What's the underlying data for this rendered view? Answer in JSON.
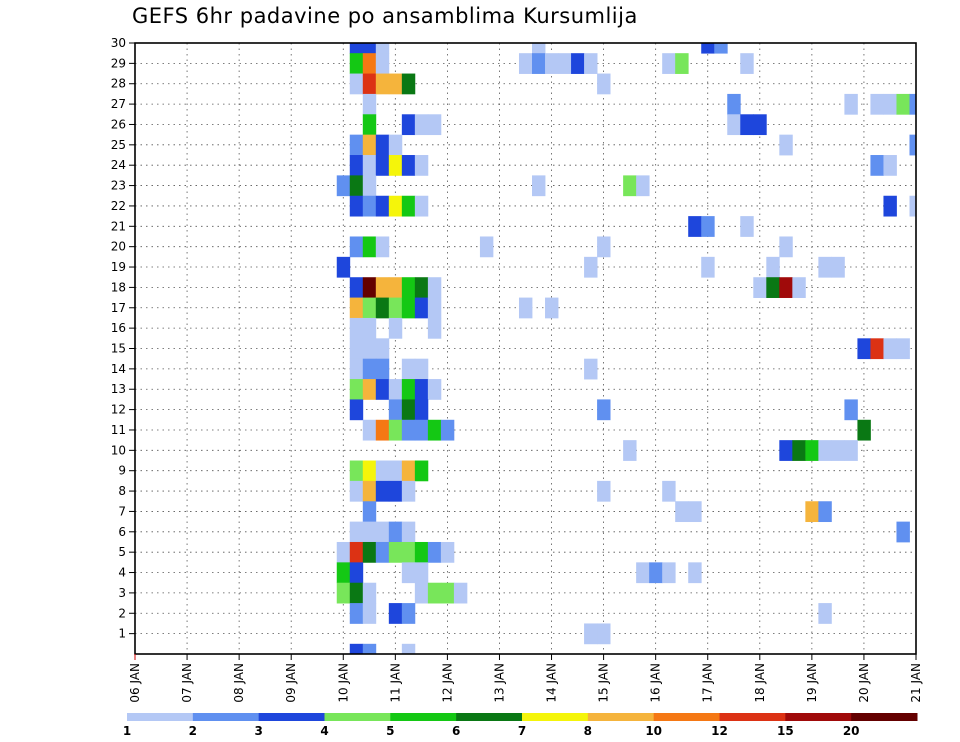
{
  "chart_data": {
    "type": "heatmap",
    "title": "GEFS 6hr padavine po ansamblima Kursumlija",
    "xlabel": "",
    "ylabel": "",
    "x_tick_labels": [
      "06 JAN",
      "07 JAN",
      "08 JAN",
      "09 JAN",
      "10 JAN",
      "11 JAN",
      "12 JAN",
      "13 JAN",
      "14 JAN",
      "15 JAN",
      "16 JAN",
      "17 JAN",
      "18 JAN",
      "19 JAN",
      "20 JAN",
      "21 JAN"
    ],
    "y_tick_labels": [
      "1",
      "2",
      "3",
      "4",
      "5",
      "6",
      "7",
      "8",
      "9",
      "10",
      "11",
      "12",
      "13",
      "14",
      "15",
      "16",
      "17",
      "18",
      "19",
      "20",
      "21",
      "22",
      "23",
      "24",
      "25",
      "26",
      "27",
      "28",
      "29",
      "30"
    ],
    "y_range": [
      0,
      30
    ],
    "x_range_days": [
      0,
      15
    ],
    "grid": true,
    "legend_position": "bottom",
    "legend": {
      "levels": [
        "1",
        "2",
        "3",
        "4",
        "5",
        "6",
        "7",
        "8",
        "10",
        "12",
        "15",
        "20"
      ],
      "colors": [
        "#b4c8f5",
        "#6090f0",
        "#1e46dc",
        "#78e65a",
        "#14c814",
        "#0a7814",
        "#f5f50a",
        "#f5b43c",
        "#f57814",
        "#dc3214",
        "#a00a0a",
        "#640000"
      ]
    },
    "cells": [
      {
        "member": 30,
        "time": "10 JAN 06",
        "class": 3
      },
      {
        "member": 30,
        "time": "10 JAN 12",
        "class": 3
      },
      {
        "member": 30,
        "time": "10 JAN 18",
        "class": 1
      },
      {
        "member": 30,
        "time": "13 JAN 18",
        "class": 1
      },
      {
        "member": 30,
        "time": "17 JAN 00",
        "class": 3
      },
      {
        "member": 30,
        "time": "17 JAN 06",
        "class": 2
      },
      {
        "member": 29,
        "time": "10 JAN 06",
        "class": 5
      },
      {
        "member": 29,
        "time": "10 JAN 12",
        "class": 9
      },
      {
        "member": 29,
        "time": "10 JAN 18",
        "class": 1
      },
      {
        "member": 29,
        "time": "13 JAN 12",
        "class": 1
      },
      {
        "member": 29,
        "time": "13 JAN 18",
        "class": 2
      },
      {
        "member": 29,
        "time": "14 JAN 00",
        "class": 1
      },
      {
        "member": 29,
        "time": "14 JAN 06",
        "class": 1
      },
      {
        "member": 29,
        "time": "14 JAN 12",
        "class": 3
      },
      {
        "member": 29,
        "time": "14 JAN 18",
        "class": 1
      },
      {
        "member": 29,
        "time": "16 JAN 06",
        "class": 1
      },
      {
        "member": 29,
        "time": "16 JAN 12",
        "class": 4
      },
      {
        "member": 29,
        "time": "17 JAN 18",
        "class": 1
      },
      {
        "member": 28,
        "time": "10 JAN 06",
        "class": 1
      },
      {
        "member": 28,
        "time": "10 JAN 12",
        "class": 10
      },
      {
        "member": 28,
        "time": "10 JAN 18",
        "class": 8
      },
      {
        "member": 28,
        "time": "11 JAN 00",
        "class": 8
      },
      {
        "member": 28,
        "time": "11 JAN 06",
        "class": 6
      },
      {
        "member": 28,
        "time": "15 JAN 00",
        "class": 1
      },
      {
        "member": 27,
        "time": "10 JAN 12",
        "class": 1
      },
      {
        "member": 27,
        "time": "17 JAN 12",
        "class": 2
      },
      {
        "member": 27,
        "time": "19 JAN 18",
        "class": 1
      },
      {
        "member": 27,
        "time": "20 JAN 06",
        "class": 1
      },
      {
        "member": 27,
        "time": "20 JAN 12",
        "class": 1
      },
      {
        "member": 27,
        "time": "20 JAN 18",
        "class": 4
      },
      {
        "member": 27,
        "time": "21 JAN 00",
        "class": 2
      },
      {
        "member": 26,
        "time": "10 JAN 12",
        "class": 5
      },
      {
        "member": 26,
        "time": "11 JAN 06",
        "class": 3
      },
      {
        "member": 26,
        "time": "11 JAN 12",
        "class": 1
      },
      {
        "member": 26,
        "time": "11 JAN 18",
        "class": 1
      },
      {
        "member": 26,
        "time": "17 JAN 12",
        "class": 1
      },
      {
        "member": 26,
        "time": "17 JAN 18",
        "class": 3
      },
      {
        "member": 26,
        "time": "18 JAN 00",
        "class": 3
      },
      {
        "member": 25,
        "time": "10 JAN 06",
        "class": 2
      },
      {
        "member": 25,
        "time": "10 JAN 12",
        "class": 8
      },
      {
        "member": 25,
        "time": "10 JAN 18",
        "class": 3
      },
      {
        "member": 25,
        "time": "11 JAN 00",
        "class": 1
      },
      {
        "member": 25,
        "time": "18 JAN 12",
        "class": 1
      },
      {
        "member": 25,
        "time": "21 JAN 00",
        "class": 2
      },
      {
        "member": 24,
        "time": "10 JAN 06",
        "class": 3
      },
      {
        "member": 24,
        "time": "10 JAN 12",
        "class": 1
      },
      {
        "member": 24,
        "time": "10 JAN 18",
        "class": 3
      },
      {
        "member": 24,
        "time": "11 JAN 00",
        "class": 7
      },
      {
        "member": 24,
        "time": "11 JAN 06",
        "class": 3
      },
      {
        "member": 24,
        "time": "11 JAN 12",
        "class": 1
      },
      {
        "member": 24,
        "time": "20 JAN 06",
        "class": 2
      },
      {
        "member": 24,
        "time": "20 JAN 12",
        "class": 1
      },
      {
        "member": 23,
        "time": "10 JAN 00",
        "class": 2
      },
      {
        "member": 23,
        "time": "10 JAN 06",
        "class": 6
      },
      {
        "member": 23,
        "time": "10 JAN 12",
        "class": 1
      },
      {
        "member": 23,
        "time": "13 JAN 18",
        "class": 1
      },
      {
        "member": 23,
        "time": "15 JAN 12",
        "class": 4
      },
      {
        "member": 23,
        "time": "15 JAN 18",
        "class": 1
      },
      {
        "member": 22,
        "time": "10 JAN 06",
        "class": 3
      },
      {
        "member": 22,
        "time": "10 JAN 12",
        "class": 2
      },
      {
        "member": 22,
        "time": "10 JAN 18",
        "class": 3
      },
      {
        "member": 22,
        "time": "11 JAN 00",
        "class": 7
      },
      {
        "member": 22,
        "time": "11 JAN 06",
        "class": 5
      },
      {
        "member": 22,
        "time": "11 JAN 12",
        "class": 1
      },
      {
        "member": 22,
        "time": "20 JAN 12",
        "class": 3
      },
      {
        "member": 22,
        "time": "21 JAN 00",
        "class": 1
      },
      {
        "member": 21,
        "time": "16 JAN 18",
        "class": 3
      },
      {
        "member": 21,
        "time": "17 JAN 00",
        "class": 2
      },
      {
        "member": 21,
        "time": "17 JAN 18",
        "class": 1
      },
      {
        "member": 20,
        "time": "10 JAN 06",
        "class": 2
      },
      {
        "member": 20,
        "time": "10 JAN 12",
        "class": 5
      },
      {
        "member": 20,
        "time": "10 JAN 18",
        "class": 1
      },
      {
        "member": 20,
        "time": "12 JAN 18",
        "class": 1
      },
      {
        "member": 20,
        "time": "15 JAN 00",
        "class": 1
      },
      {
        "member": 20,
        "time": "18 JAN 12",
        "class": 1
      },
      {
        "member": 19,
        "time": "10 JAN 00",
        "class": 3
      },
      {
        "member": 19,
        "time": "14 JAN 18",
        "class": 1
      },
      {
        "member": 19,
        "time": "17 JAN 00",
        "class": 1
      },
      {
        "member": 19,
        "time": "18 JAN 06",
        "class": 1
      },
      {
        "member": 19,
        "time": "19 JAN 06",
        "class": 1
      },
      {
        "member": 19,
        "time": "19 JAN 12",
        "class": 1
      },
      {
        "member": 18,
        "time": "10 JAN 06",
        "class": 3
      },
      {
        "member": 18,
        "time": "10 JAN 12",
        "class": 12
      },
      {
        "member": 18,
        "time": "10 JAN 18",
        "class": 8
      },
      {
        "member": 18,
        "time": "11 JAN 00",
        "class": 8
      },
      {
        "member": 18,
        "time": "11 JAN 06",
        "class": 5
      },
      {
        "member": 18,
        "time": "11 JAN 12",
        "class": 6
      },
      {
        "member": 18,
        "time": "11 JAN 18",
        "class": 1
      },
      {
        "member": 18,
        "time": "18 JAN 00",
        "class": 1
      },
      {
        "member": 18,
        "time": "18 JAN 06",
        "class": 6
      },
      {
        "member": 18,
        "time": "18 JAN 12",
        "class": 11
      },
      {
        "member": 18,
        "time": "18 JAN 18",
        "class": 1
      },
      {
        "member": 17,
        "time": "10 JAN 06",
        "class": 8
      },
      {
        "member": 17,
        "time": "10 JAN 12",
        "class": 4
      },
      {
        "member": 17,
        "time": "10 JAN 18",
        "class": 6
      },
      {
        "member": 17,
        "time": "11 JAN 00",
        "class": 4
      },
      {
        "member": 17,
        "time": "11 JAN 06",
        "class": 5
      },
      {
        "member": 17,
        "time": "11 JAN 12",
        "class": 3
      },
      {
        "member": 17,
        "time": "11 JAN 18",
        "class": 1
      },
      {
        "member": 17,
        "time": "13 JAN 12",
        "class": 1
      },
      {
        "member": 17,
        "time": "14 JAN 00",
        "class": 1
      },
      {
        "member": 16,
        "time": "10 JAN 06",
        "class": 1
      },
      {
        "member": 16,
        "time": "10 JAN 12",
        "class": 1
      },
      {
        "member": 16,
        "time": "11 JAN 00",
        "class": 1
      },
      {
        "member": 16,
        "time": "11 JAN 18",
        "class": 1
      },
      {
        "member": 15,
        "time": "10 JAN 06",
        "class": 1
      },
      {
        "member": 15,
        "time": "10 JAN 12",
        "class": 1
      },
      {
        "member": 15,
        "time": "10 JAN 18",
        "class": 1
      },
      {
        "member": 15,
        "time": "20 JAN 00",
        "class": 3
      },
      {
        "member": 15,
        "time": "20 JAN 06",
        "class": 10
      },
      {
        "member": 15,
        "time": "20 JAN 12",
        "class": 1
      },
      {
        "member": 15,
        "time": "20 JAN 18",
        "class": 1
      },
      {
        "member": 14,
        "time": "10 JAN 06",
        "class": 1
      },
      {
        "member": 14,
        "time": "10 JAN 12",
        "class": 2
      },
      {
        "member": 14,
        "time": "10 JAN 18",
        "class": 2
      },
      {
        "member": 14,
        "time": "11 JAN 06",
        "class": 1
      },
      {
        "member": 14,
        "time": "11 JAN 12",
        "class": 1
      },
      {
        "member": 14,
        "time": "14 JAN 18",
        "class": 1
      },
      {
        "member": 13,
        "time": "10 JAN 06",
        "class": 4
      },
      {
        "member": 13,
        "time": "10 JAN 12",
        "class": 8
      },
      {
        "member": 13,
        "time": "10 JAN 18",
        "class": 3
      },
      {
        "member": 13,
        "time": "11 JAN 00",
        "class": 1
      },
      {
        "member": 13,
        "time": "11 JAN 06",
        "class": 5
      },
      {
        "member": 13,
        "time": "11 JAN 12",
        "class": 3
      },
      {
        "member": 13,
        "time": "11 JAN 18",
        "class": 1
      },
      {
        "member": 12,
        "time": "10 JAN 06",
        "class": 3
      },
      {
        "member": 12,
        "time": "11 JAN 00",
        "class": 2
      },
      {
        "member": 12,
        "time": "11 JAN 06",
        "class": 6
      },
      {
        "member": 12,
        "time": "11 JAN 12",
        "class": 3
      },
      {
        "member": 12,
        "time": "15 JAN 00",
        "class": 2
      },
      {
        "member": 12,
        "time": "19 JAN 18",
        "class": 2
      },
      {
        "member": 11,
        "time": "10 JAN 12",
        "class": 1
      },
      {
        "member": 11,
        "time": "10 JAN 18",
        "class": 9
      },
      {
        "member": 11,
        "time": "11 JAN 00",
        "class": 4
      },
      {
        "member": 11,
        "time": "11 JAN 06",
        "class": 2
      },
      {
        "member": 11,
        "time": "11 JAN 12",
        "class": 2
      },
      {
        "member": 11,
        "time": "11 JAN 18",
        "class": 5
      },
      {
        "member": 11,
        "time": "12 JAN 00",
        "class": 2
      },
      {
        "member": 11,
        "time": "20 JAN 00",
        "class": 6
      },
      {
        "member": 10,
        "time": "15 JAN 12",
        "class": 1
      },
      {
        "member": 10,
        "time": "18 JAN 12",
        "class": 3
      },
      {
        "member": 10,
        "time": "18 JAN 18",
        "class": 6
      },
      {
        "member": 10,
        "time": "19 JAN 00",
        "class": 5
      },
      {
        "member": 10,
        "time": "19 JAN 06",
        "class": 1
      },
      {
        "member": 10,
        "time": "19 JAN 12",
        "class": 1
      },
      {
        "member": 10,
        "time": "19 JAN 18",
        "class": 1
      },
      {
        "member": 9,
        "time": "10 JAN 06",
        "class": 4
      },
      {
        "member": 9,
        "time": "10 JAN 12",
        "class": 7
      },
      {
        "member": 9,
        "time": "10 JAN 18",
        "class": 1
      },
      {
        "member": 9,
        "time": "11 JAN 00",
        "class": 1
      },
      {
        "member": 9,
        "time": "11 JAN 06",
        "class": 8
      },
      {
        "member": 9,
        "time": "11 JAN 12",
        "class": 5
      },
      {
        "member": 8,
        "time": "10 JAN 06",
        "class": 1
      },
      {
        "member": 8,
        "time": "10 JAN 12",
        "class": 8
      },
      {
        "member": 8,
        "time": "10 JAN 18",
        "class": 3
      },
      {
        "member": 8,
        "time": "11 JAN 00",
        "class": 3
      },
      {
        "member": 8,
        "time": "11 JAN 06",
        "class": 1
      },
      {
        "member": 8,
        "time": "15 JAN 00",
        "class": 1
      },
      {
        "member": 8,
        "time": "16 JAN 06",
        "class": 1
      },
      {
        "member": 7,
        "time": "10 JAN 12",
        "class": 2
      },
      {
        "member": 7,
        "time": "16 JAN 12",
        "class": 1
      },
      {
        "member": 7,
        "time": "16 JAN 18",
        "class": 1
      },
      {
        "member": 7,
        "time": "19 JAN 00",
        "class": 8
      },
      {
        "member": 7,
        "time": "19 JAN 06",
        "class": 2
      },
      {
        "member": 6,
        "time": "10 JAN 06",
        "class": 1
      },
      {
        "member": 6,
        "time": "10 JAN 12",
        "class": 1
      },
      {
        "member": 6,
        "time": "10 JAN 18",
        "class": 1
      },
      {
        "member": 6,
        "time": "11 JAN 00",
        "class": 2
      },
      {
        "member": 6,
        "time": "11 JAN 06",
        "class": 1
      },
      {
        "member": 6,
        "time": "20 JAN 18",
        "class": 2
      },
      {
        "member": 5,
        "time": "10 JAN 00",
        "class": 1
      },
      {
        "member": 5,
        "time": "10 JAN 06",
        "class": 10
      },
      {
        "member": 5,
        "time": "10 JAN 12",
        "class": 6
      },
      {
        "member": 5,
        "time": "10 JAN 18",
        "class": 2
      },
      {
        "member": 5,
        "time": "11 JAN 00",
        "class": 4
      },
      {
        "member": 5,
        "time": "11 JAN 06",
        "class": 4
      },
      {
        "member": 5,
        "time": "11 JAN 12",
        "class": 5
      },
      {
        "member": 5,
        "time": "11 JAN 18",
        "class": 2
      },
      {
        "member": 5,
        "time": "12 JAN 00",
        "class": 1
      },
      {
        "member": 4,
        "time": "10 JAN 00",
        "class": 5
      },
      {
        "member": 4,
        "time": "10 JAN 06",
        "class": 3
      },
      {
        "member": 4,
        "time": "11 JAN 06",
        "class": 1
      },
      {
        "member": 4,
        "time": "11 JAN 12",
        "class": 1
      },
      {
        "member": 4,
        "time": "15 JAN 18",
        "class": 1
      },
      {
        "member": 4,
        "time": "16 JAN 00",
        "class": 2
      },
      {
        "member": 4,
        "time": "16 JAN 06",
        "class": 1
      },
      {
        "member": 4,
        "time": "16 JAN 18",
        "class": 1
      },
      {
        "member": 3,
        "time": "10 JAN 00",
        "class": 4
      },
      {
        "member": 3,
        "time": "10 JAN 06",
        "class": 6
      },
      {
        "member": 3,
        "time": "10 JAN 12",
        "class": 1
      },
      {
        "member": 3,
        "time": "11 JAN 12",
        "class": 1
      },
      {
        "member": 3,
        "time": "11 JAN 18",
        "class": 4
      },
      {
        "member": 3,
        "time": "12 JAN 00",
        "class": 4
      },
      {
        "member": 3,
        "time": "12 JAN 06",
        "class": 1
      },
      {
        "member": 2,
        "time": "10 JAN 06",
        "class": 2
      },
      {
        "member": 2,
        "time": "10 JAN 12",
        "class": 1
      },
      {
        "member": 2,
        "time": "11 JAN 00",
        "class": 3
      },
      {
        "member": 2,
        "time": "11 JAN 06",
        "class": 2
      },
      {
        "member": 2,
        "time": "19 JAN 06",
        "class": 1
      },
      {
        "member": 1,
        "time": "14 JAN 18",
        "class": 1
      },
      {
        "member": 1,
        "time": "15 JAN 00",
        "class": 1
      },
      {
        "member": 0,
        "time": "10 JAN 06",
        "class": 3
      },
      {
        "member": 0,
        "time": "10 JAN 12",
        "class": 2
      },
      {
        "member": 0,
        "time": "11 JAN 06",
        "class": 1
      }
    ]
  }
}
